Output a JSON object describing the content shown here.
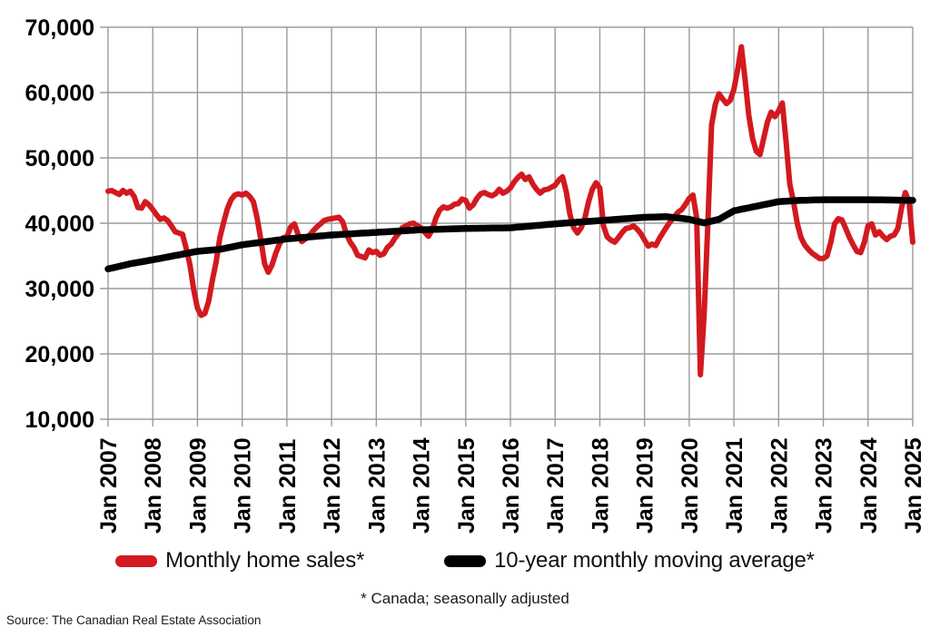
{
  "chart_data": {
    "type": "line",
    "title": "",
    "grid": {
      "show": true,
      "color": "#9b9b9b"
    },
    "legend_position": "bottom",
    "footnote": "* Canada; seasonally adjusted",
    "source": "Source: The Canadian Real Estate Association",
    "y_axis": {
      "min": 10000,
      "max": 70000,
      "step": 10000,
      "tick_labels": [
        "70,000",
        "60,000",
        "50,000",
        "40,000",
        "30,000",
        "20,000",
        "10,000"
      ]
    },
    "x_axis": {
      "tick_labels": [
        "Jan 2007",
        "Jan 2008",
        "Jan 2009",
        "Jan 2010",
        "Jan 2011",
        "Jan 2012",
        "Jan 2013",
        "Jan 2014",
        "Jan 2015",
        "Jan 2016",
        "Jan 2017",
        "Jan 2018",
        "Jan 2019",
        "Jan 2020",
        "Jan 2021",
        "Jan 2022",
        "Jan 2023",
        "Jan 2024",
        "Jan 2025"
      ],
      "months_between_ticks": 12,
      "start": "Jan 2007",
      "end": "Jan 2025"
    },
    "series": [
      {
        "name": "Monthly home sales*",
        "color": "#d2191f",
        "frequency": "monthly",
        "values": [
          44900,
          45000,
          44700,
          44400,
          45000,
          44600,
          44900,
          44100,
          42400,
          42300,
          43300,
          42800,
          42100,
          41300,
          40600,
          40800,
          40400,
          39600,
          38700,
          38500,
          38300,
          36100,
          33600,
          29800,
          27000,
          25900,
          26200,
          28100,
          31300,
          34100,
          37800,
          40100,
          42200,
          43600,
          44300,
          44500,
          44300,
          44600,
          44100,
          43300,
          40800,
          37500,
          33800,
          32500,
          33600,
          35400,
          36800,
          37800,
          37900,
          39400,
          39900,
          38300,
          37200,
          37600,
          38100,
          38800,
          39400,
          39900,
          40400,
          40600,
          40700,
          40800,
          40900,
          40200,
          38300,
          37100,
          36300,
          35100,
          34900,
          34700,
          35900,
          35500,
          35700,
          35100,
          35300,
          36300,
          36800,
          37700,
          38400,
          39300,
          39600,
          39900,
          40000,
          39600,
          39300,
          38600,
          38000,
          39000,
          40800,
          42000,
          42500,
          42300,
          42500,
          42900,
          43000,
          43700,
          43500,
          42300,
          42800,
          43800,
          44500,
          44700,
          44400,
          44200,
          44500,
          45200,
          44600,
          44900,
          45400,
          46300,
          47000,
          47500,
          46700,
          47100,
          46000,
          45200,
          44600,
          45100,
          45200,
          45500,
          45800,
          46600,
          47100,
          44800,
          41300,
          39300,
          38500,
          39300,
          40800,
          43300,
          45200,
          46200,
          45400,
          39600,
          37900,
          37400,
          37100,
          37800,
          38600,
          39200,
          39300,
          39600,
          39100,
          38400,
          37400,
          36500,
          36800,
          36600,
          37700,
          38600,
          39500,
          40300,
          41000,
          41700,
          42100,
          42900,
          43800,
          44300,
          40800,
          16800,
          26000,
          40000,
          55000,
          58200,
          59800,
          59000,
          58300,
          58800,
          60500,
          63500,
          67000,
          62000,
          56500,
          53000,
          51000,
          50500,
          53000,
          55500,
          57000,
          56300,
          57200,
          58400,
          52500,
          46000,
          43300,
          40000,
          37800,
          36700,
          36000,
          35400,
          35000,
          34600,
          34600,
          35000,
          37100,
          39900,
          40700,
          40500,
          39200,
          37800,
          36700,
          35700,
          35500,
          37100,
          39600,
          39900,
          38200,
          38700,
          38000,
          37500,
          38000,
          38200,
          39200,
          42400,
          44700,
          43300,
          37100
        ]
      },
      {
        "name": "10-year monthly moving average*",
        "color": "#000000",
        "frequency": "monthly-anchors",
        "anchors_month_value": [
          [
            0,
            33000
          ],
          [
            6,
            33800
          ],
          [
            12,
            34400
          ],
          [
            24,
            35700
          ],
          [
            30,
            36000
          ],
          [
            36,
            36700
          ],
          [
            48,
            37600
          ],
          [
            60,
            38200
          ],
          [
            72,
            38600
          ],
          [
            84,
            39000
          ],
          [
            96,
            39200
          ],
          [
            108,
            39300
          ],
          [
            120,
            39900
          ],
          [
            132,
            40400
          ],
          [
            144,
            40900
          ],
          [
            150,
            41000
          ],
          [
            156,
            40600
          ],
          [
            160,
            40050
          ],
          [
            164,
            40600
          ],
          [
            168,
            41900
          ],
          [
            174,
            42600
          ],
          [
            180,
            43300
          ],
          [
            186,
            43500
          ],
          [
            192,
            43600
          ],
          [
            204,
            43600
          ],
          [
            216,
            43500
          ]
        ]
      }
    ]
  }
}
